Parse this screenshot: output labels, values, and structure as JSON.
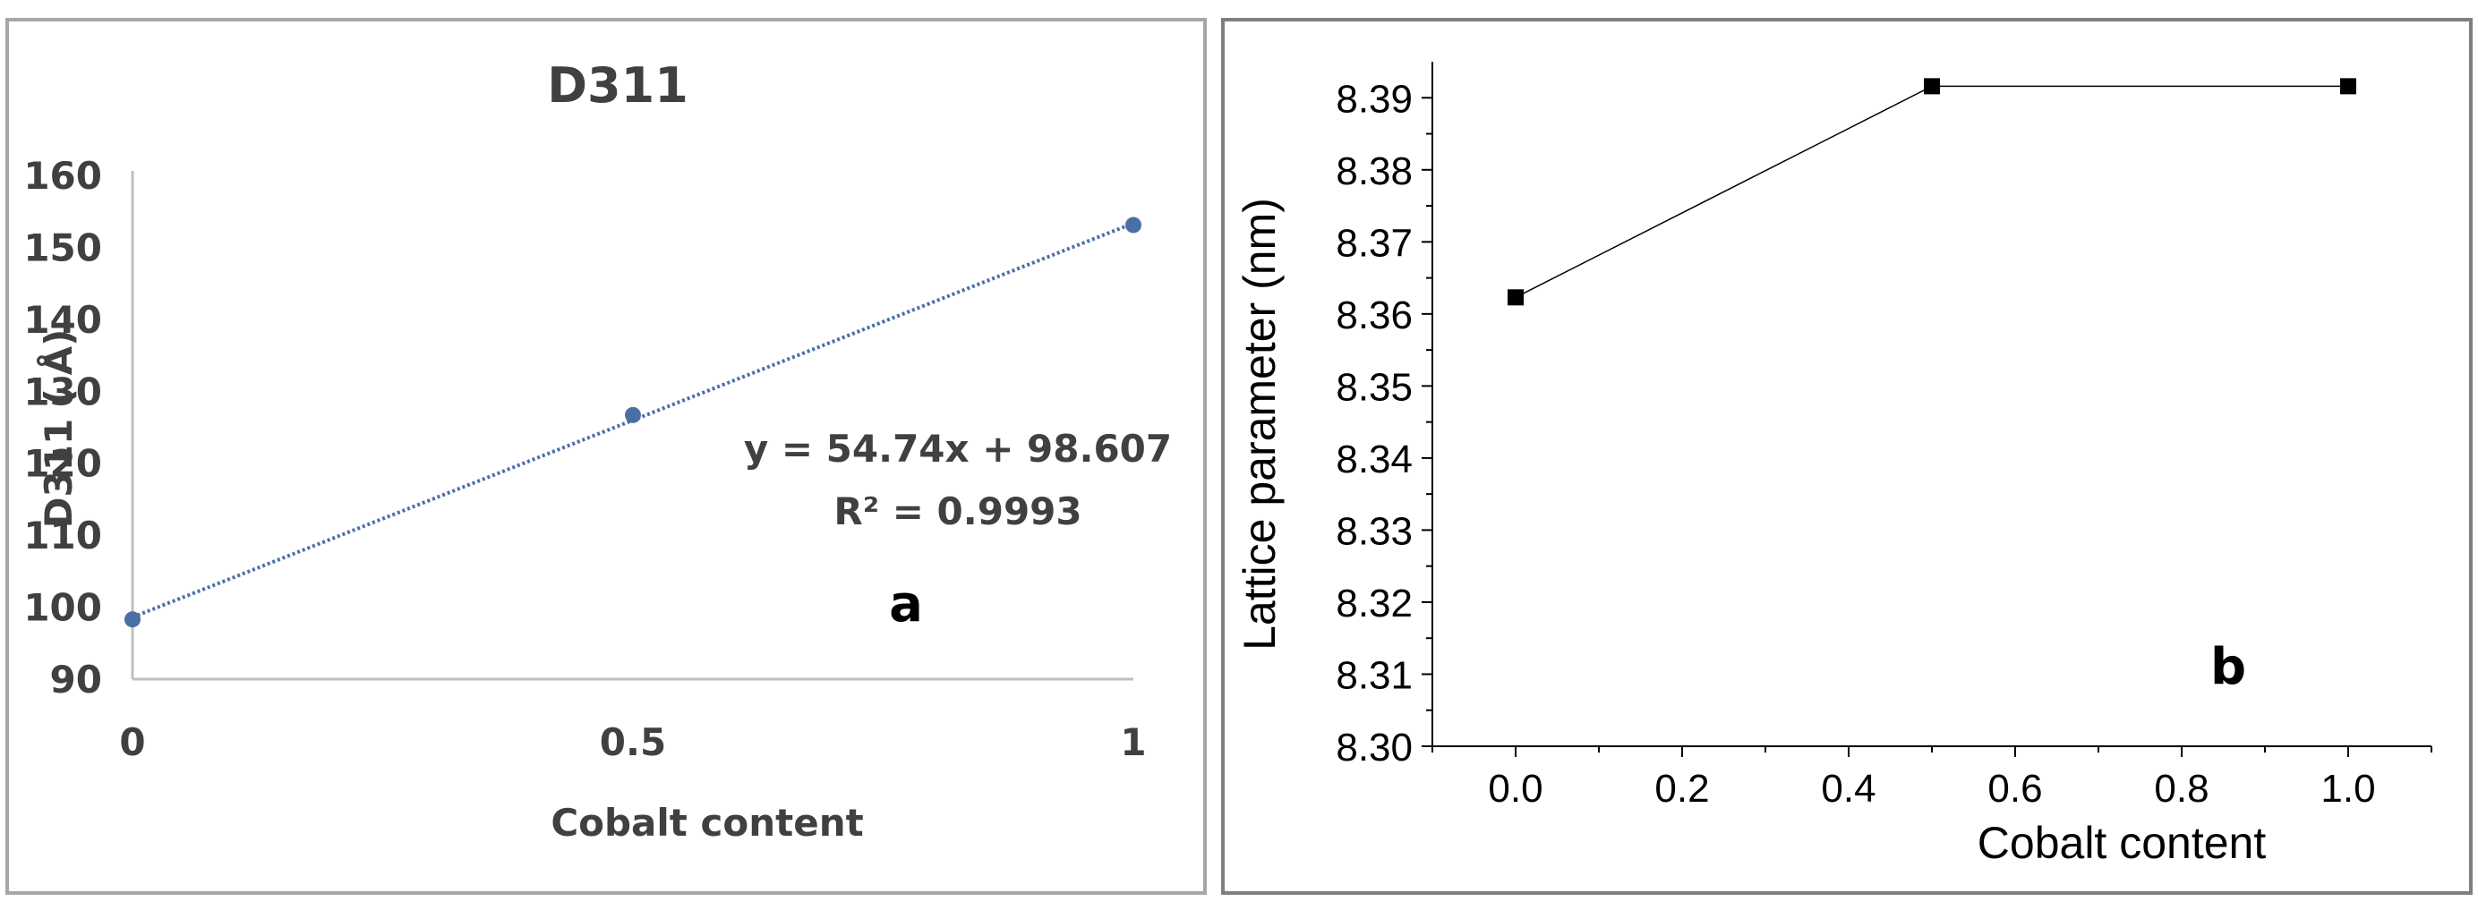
{
  "chart_data": [
    {
      "type": "scatter",
      "panel_label": "a",
      "title": "D311",
      "xlabel": "Cobalt content",
      "ylabel": "D311 ( Å)",
      "x": [
        0,
        0.5,
        1
      ],
      "y": [
        98.3,
        126.7,
        153.1
      ],
      "xlim": [
        0,
        1
      ],
      "ylim": [
        90,
        160
      ],
      "xticks": [
        "0",
        "0.5",
        "1"
      ],
      "yticks": [
        "90",
        "100",
        "110",
        "120",
        "130",
        "140",
        "150",
        "160"
      ],
      "trendline": {
        "type": "linear",
        "slope": 54.74,
        "intercept": 98.607,
        "style": "dotted"
      },
      "equation": "y = 54.74x + 98.607",
      "r_squared": "R² = 0.9993",
      "point_color": "#4a6fa5",
      "grid": false
    },
    {
      "type": "line",
      "panel_label": "b",
      "title": "",
      "xlabel": "Cobalt content",
      "ylabel": "Lattice parameter (nm)",
      "x": [
        0.0,
        0.5,
        1.0
      ],
      "y": [
        8.3623,
        8.3916,
        8.3916
      ],
      "xlim": [
        -0.1,
        1.1
      ],
      "ylim": [
        8.3,
        8.395
      ],
      "xticks": [
        "0.0",
        "0.2",
        "0.4",
        "0.6",
        "0.8",
        "1.0"
      ],
      "yticks": [
        "8.30",
        "8.31",
        "8.32",
        "8.33",
        "8.34",
        "8.35",
        "8.36",
        "8.37",
        "8.38",
        "8.39"
      ],
      "marker": "square",
      "line_color": "#000000",
      "grid": false
    }
  ]
}
